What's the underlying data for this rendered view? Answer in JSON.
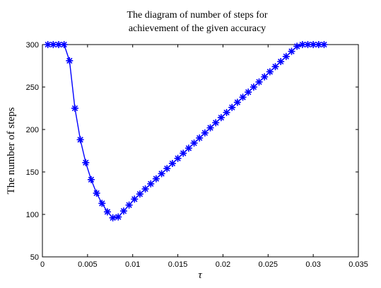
{
  "chart_data": {
    "type": "line",
    "title_lines": [
      "The diagram of number of steps for",
      "achievement of the given accuracy"
    ],
    "xlabel": "τ",
    "ylabel": "The number of steps",
    "xlim": [
      0,
      0.035
    ],
    "ylim": [
      50,
      300
    ],
    "xticks": [
      0,
      0.005,
      0.01,
      0.015,
      0.02,
      0.025,
      0.03,
      0.035
    ],
    "xtick_labels": [
      "0",
      "0.005",
      "0.01",
      "0.015",
      "0.02",
      "0.025",
      "0.03",
      "0.035"
    ],
    "yticks": [
      50,
      100,
      150,
      200,
      250,
      300
    ],
    "ytick_labels": [
      "50",
      "100",
      "150",
      "200",
      "250",
      "300"
    ],
    "grid": false,
    "marker": "asterisk",
    "line_color": "#0000ff",
    "series": [
      {
        "x": [
          0.0006,
          0.0012,
          0.0018,
          0.0024,
          0.003,
          0.0036,
          0.0042,
          0.0048,
          0.0054,
          0.006,
          0.0066,
          0.0072,
          0.0078,
          0.0084,
          0.009,
          0.0096,
          0.0102,
          0.0108,
          0.0114,
          0.012,
          0.0126,
          0.0132,
          0.0138,
          0.0144,
          0.015,
          0.0156,
          0.0162,
          0.0168,
          0.0174,
          0.018,
          0.0186,
          0.0192,
          0.0198,
          0.0204,
          0.021,
          0.0216,
          0.0222,
          0.0228,
          0.0234,
          0.024,
          0.0246,
          0.0252,
          0.0258,
          0.0264,
          0.027,
          0.0276,
          0.0282,
          0.0288,
          0.0294,
          0.03,
          0.0306,
          0.0312
        ],
        "y": [
          300,
          300,
          300,
          300,
          281,
          225,
          188,
          161,
          141,
          125,
          113,
          103,
          96,
          97,
          104,
          111,
          118,
          124,
          130,
          136,
          142,
          148,
          154,
          160,
          166,
          172,
          178,
          184,
          190,
          196,
          202,
          208,
          214,
          220,
          226,
          232,
          238,
          244,
          250,
          256,
          262,
          268,
          274,
          280,
          286,
          292,
          298,
          300,
          300,
          300,
          300,
          300
        ]
      }
    ]
  }
}
